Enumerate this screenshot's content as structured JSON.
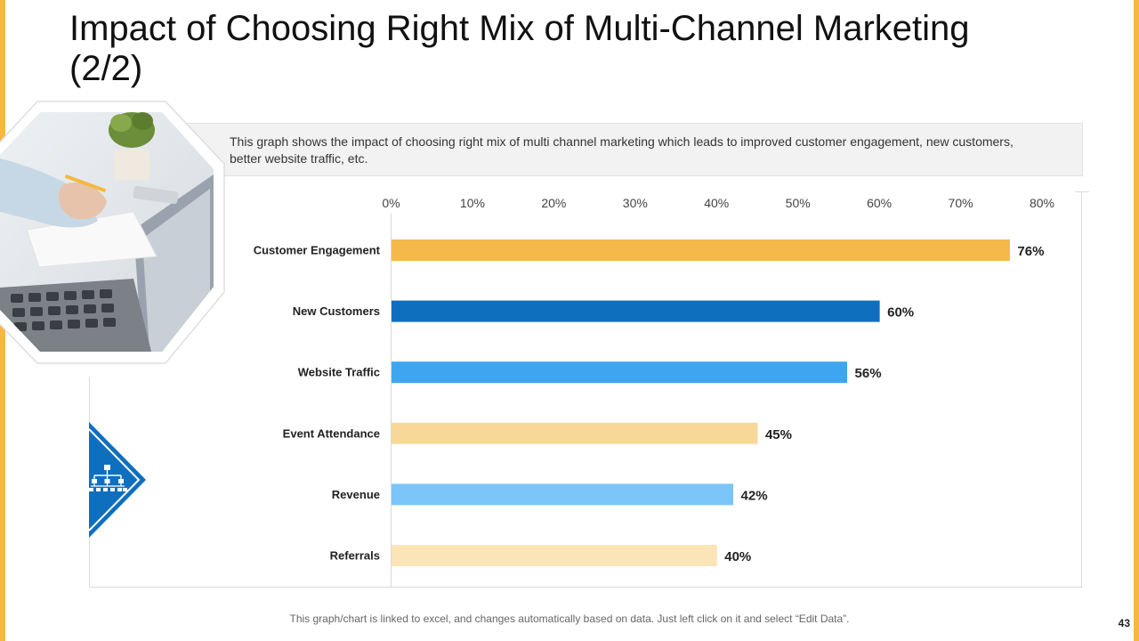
{
  "slide": {
    "title": "Impact of Choosing Right Mix of Multi-Channel Marketing (2/2)",
    "description": "This graph shows the impact of choosing right mix of multi channel marketing which leads to improved customer engagement, new customers, better website traffic, etc.",
    "footer_note": "This graph/chart is linked to excel, and changes automatically based on data. Just left click on it and select “Edit Data”.",
    "page_number": "43",
    "accent_color": "#f5b841",
    "icon": "hierarchy-icon"
  },
  "chart_data": {
    "type": "bar",
    "orientation": "horizontal",
    "categories": [
      "Customer Engagement",
      "New Customers",
      "Website Traffic",
      "Event Attendance",
      "Revenue",
      "Referrals"
    ],
    "values": [
      76,
      60,
      56,
      45,
      42,
      40
    ],
    "value_labels": [
      "76%",
      "60%",
      "56%",
      "45%",
      "42%",
      "40%"
    ],
    "bar_colors": [
      "#f5b94a",
      "#0f6fbf",
      "#3ea6f0",
      "#f8d898",
      "#7cc5f8",
      "#fbe4b8"
    ],
    "xlim": [
      0,
      80
    ],
    "xticks": [
      0,
      10,
      20,
      30,
      40,
      50,
      60,
      70,
      80
    ],
    "xtick_labels": [
      "0%",
      "10%",
      "20%",
      "30%",
      "40%",
      "50%",
      "60%",
      "70%",
      "80%"
    ],
    "x_axis_position": "top",
    "grid": false,
    "legend": "none",
    "title": "",
    "xlabel": "",
    "ylabel": ""
  }
}
